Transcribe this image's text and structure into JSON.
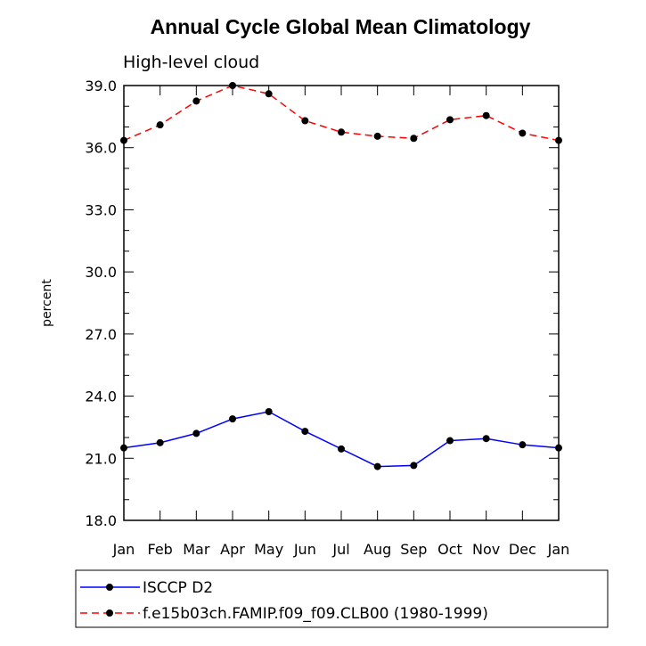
{
  "chart_data": {
    "type": "line",
    "title": "Annual Cycle Global Mean Climatology",
    "subtitle": "High-level cloud",
    "xlabel": "",
    "ylabel": "percent",
    "categories": [
      "Jan",
      "Feb",
      "Mar",
      "Apr",
      "May",
      "Jun",
      "Jul",
      "Aug",
      "Sep",
      "Oct",
      "Nov",
      "Dec",
      "Jan"
    ],
    "ylim": [
      18.0,
      39.0
    ],
    "yticks": [
      "18.0",
      "21.0",
      "24.0",
      "27.0",
      "30.0",
      "33.0",
      "36.0",
      "39.0"
    ],
    "grid": false,
    "legend_position": "bottom",
    "series": [
      {
        "name": "ISCCP D2",
        "color": "#0000ff",
        "dash": "solid",
        "values": [
          21.5,
          21.75,
          22.2,
          22.9,
          23.25,
          22.3,
          21.45,
          20.6,
          20.65,
          21.85,
          21.95,
          21.65,
          21.5
        ]
      },
      {
        "name": "f.e15b03ch.FAMIP.f09_f09.CLB00 (1980-1999)",
        "color": "#ff0000",
        "dash": "dashed",
        "values": [
          36.35,
          37.1,
          38.25,
          39.0,
          38.6,
          37.3,
          36.75,
          36.55,
          36.45,
          37.35,
          37.55,
          36.7,
          36.35
        ]
      }
    ]
  }
}
